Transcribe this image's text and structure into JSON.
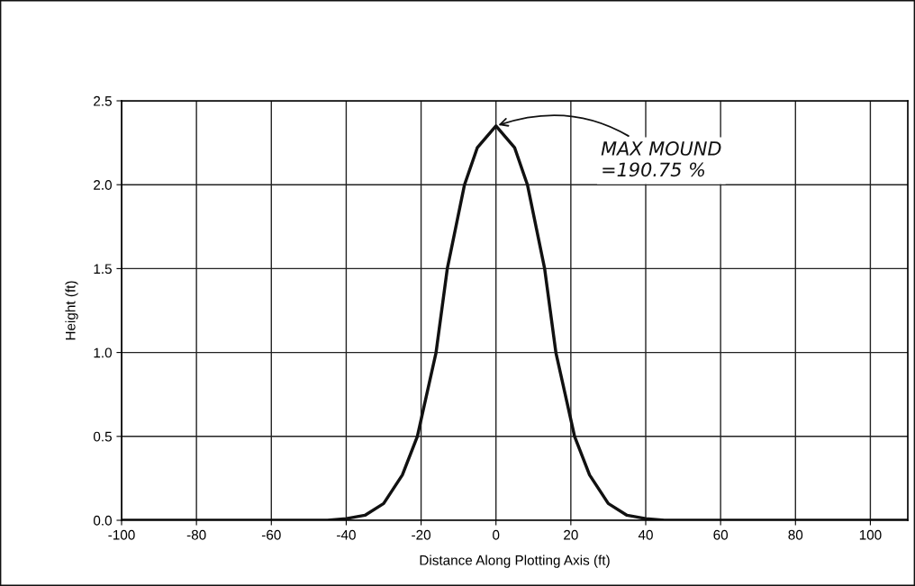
{
  "chart_data": {
    "type": "line",
    "xlabel": "Distance Along Plotting Axis (ft)",
    "ylabel": "Height (ft)",
    "x": [
      -100,
      -60,
      -45,
      -40,
      -35,
      -30,
      -25,
      -21,
      -16,
      -13,
      -8.4,
      -5,
      0,
      5,
      8.4,
      13,
      16,
      21,
      25,
      30,
      35,
      40,
      45,
      60,
      100,
      110
    ],
    "series": [
      {
        "color": "#111111",
        "values": [
          0,
          0,
          0,
          0.01,
          0.03,
          0.1,
          0.27,
          0.5,
          1.0,
          1.5,
          2.0,
          2.22,
          2.35,
          2.22,
          2.0,
          1.5,
          1.0,
          0.5,
          0.27,
          0.1,
          0.03,
          0.01,
          0,
          0,
          0,
          0
        ]
      }
    ],
    "xlim": [
      -100,
      110
    ],
    "xticks": [
      -100,
      -80,
      -60,
      -40,
      -20,
      0,
      20,
      40,
      60,
      80,
      100
    ],
    "ylim": [
      0,
      2.5
    ],
    "yticks": [
      {
        "value": 0,
        "label": "0.0"
      },
      {
        "value": 0.5,
        "label": "0.5"
      },
      {
        "value": 1.0,
        "label": "1.0"
      },
      {
        "value": 1.5,
        "label": "1.5"
      },
      {
        "value": 2.0,
        "label": "2.0"
      },
      {
        "value": 2.5,
        "label": "2.5"
      }
    ],
    "grid": true,
    "marker": "none",
    "line_style": "solid",
    "annotations": [
      {
        "text": "MAX MOUND\n=190.75 %",
        "x": 0,
        "y": 2.35
      }
    ]
  }
}
